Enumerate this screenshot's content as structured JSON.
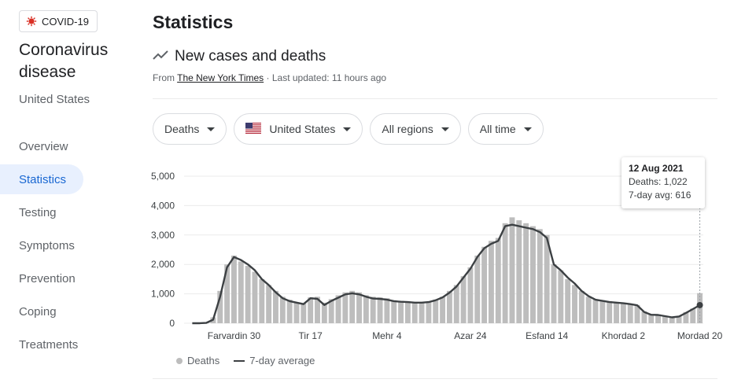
{
  "sidebar": {
    "chip_label": "COVID-19",
    "title": "Coronavirus disease",
    "country": "United States",
    "items": [
      {
        "label": "Overview",
        "active": false
      },
      {
        "label": "Statistics",
        "active": true
      },
      {
        "label": "Testing",
        "active": false
      },
      {
        "label": "Symptoms",
        "active": false
      },
      {
        "label": "Prevention",
        "active": false
      },
      {
        "label": "Coping",
        "active": false
      },
      {
        "label": "Treatments",
        "active": false
      }
    ]
  },
  "main": {
    "title": "Statistics",
    "section_title": "New cases and deaths",
    "source_prefix": "From",
    "source_name": "The New York Times",
    "updated": "· Last updated: 11 hours ago"
  },
  "filters": {
    "metric": "Deaths",
    "country": "United States",
    "region": "All regions",
    "time": "All time"
  },
  "colors": {
    "bar": "#bdbdbd",
    "line": "#3c4043",
    "active_nav_bg": "#e8f0fe",
    "active_nav_text": "#1967d2",
    "chip_icon": "#d93025"
  },
  "tooltip": {
    "date": "12 Aug 2021",
    "deaths": "Deaths: 1,022",
    "avg": "7-day avg: 616"
  },
  "legend": {
    "deaths": "Deaths",
    "avg": "7-day average"
  },
  "chart_data": {
    "type": "bar",
    "ylim": [
      0,
      5000
    ],
    "yticks": [
      0,
      1000,
      2000,
      3000,
      4000,
      5000
    ],
    "ytick_labels": [
      "0",
      "1,000",
      "2,000",
      "3,000",
      "4,000",
      "5,000"
    ],
    "xtick_labels": [
      "Farvardin 30",
      "Tir 17",
      "Mehr 4",
      "Azar 24",
      "Esfand 14",
      "Khordad 2",
      "Mordad 20"
    ],
    "xtick_weeks": [
      6,
      17,
      28,
      40,
      51,
      62,
      73
    ],
    "n_weeks": 74,
    "series": [
      {
        "name": "Deaths",
        "values": [
          0,
          0,
          20,
          200,
          1100,
          2000,
          2300,
          2100,
          1950,
          1750,
          1500,
          1300,
          1100,
          900,
          800,
          700,
          680,
          880,
          900,
          700,
          820,
          950,
          1050,
          1100,
          1050,
          950,
          900,
          880,
          850,
          780,
          760,
          740,
          720,
          700,
          720,
          800,
          900,
          1100,
          1300,
          1600,
          1900,
          2300,
          2600,
          2800,
          2900,
          3400,
          3600,
          3500,
          3400,
          3300,
          3200,
          3000,
          2000,
          1800,
          1500,
          1300,
          1100,
          900,
          800,
          780,
          750,
          700,
          680,
          650,
          620,
          400,
          300,
          300,
          250,
          220,
          250,
          380,
          500,
          1022
        ]
      },
      {
        "name": "7-day average",
        "values": [
          0,
          0,
          10,
          120,
          900,
          1900,
          2250,
          2150,
          2000,
          1800,
          1500,
          1300,
          1050,
          850,
          750,
          700,
          650,
          850,
          830,
          620,
          760,
          870,
          980,
          1020,
          980,
          900,
          840,
          830,
          800,
          750,
          730,
          720,
          700,
          700,
          720,
          780,
          880,
          1040,
          1250,
          1550,
          1850,
          2250,
          2550,
          2700,
          2800,
          3300,
          3350,
          3300,
          3250,
          3200,
          3100,
          2900,
          2000,
          1800,
          1550,
          1350,
          1100,
          920,
          800,
          760,
          720,
          700,
          680,
          650,
          610,
          380,
          290,
          280,
          240,
          200,
          230,
          350,
          480,
          616
        ]
      }
    ]
  }
}
